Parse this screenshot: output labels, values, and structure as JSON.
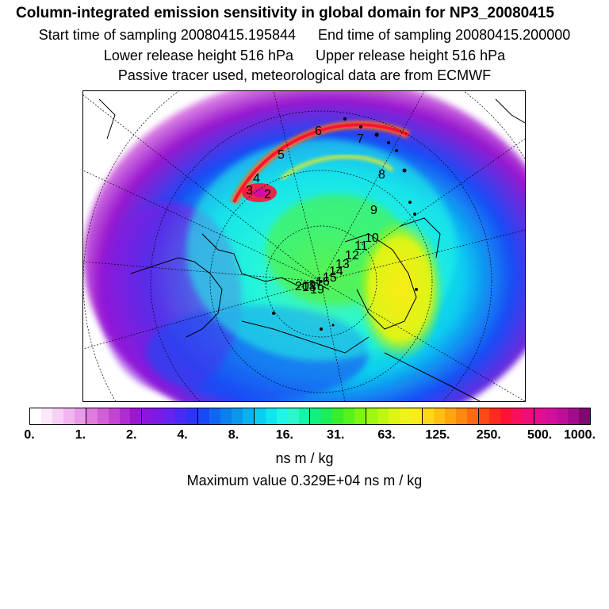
{
  "header": {
    "title": "Column-integrated emission sensitivity in global domain for NP3_20080415",
    "start_label": "Start time of sampling 20080415.195844",
    "end_label": "End time of sampling 20080415.200000",
    "lower_label": "Lower release height  516 hPa",
    "upper_label": "Upper release height  516 hPa",
    "note": "Passive tracer used, meteorological data are from ECMWF"
  },
  "map": {
    "projection": "polar stereographic",
    "track_labels": [
      "6",
      "7",
      "5",
      "8",
      "4",
      "3",
      "2",
      "9",
      "10",
      "11",
      "12",
      "13",
      "14",
      "15",
      "16",
      "17",
      "18",
      "19",
      "20"
    ]
  },
  "colorbar": {
    "tick_labels": [
      "0.",
      "1.",
      "2.",
      "4.",
      "8.",
      "16.",
      "31.",
      "63.",
      "125.",
      "250.",
      "500.",
      "1000."
    ],
    "colors": [
      "#ffffff",
      "#fbe8fb",
      "#f6d0f6",
      "#f0b6f0",
      "#e99ae9",
      "#df7adf",
      "#d25ed6",
      "#c244d3",
      "#b02bd0",
      "#9a18cf",
      "#8a16e0",
      "#7a1ae8",
      "#6622ef",
      "#4a2af4",
      "#2e34f6",
      "#1a4af5",
      "#0e66f2",
      "#0a80ef",
      "#0a98ee",
      "#0ab2ef",
      "#0acdf0",
      "#10e4ef",
      "#20f5e6",
      "#2af8cc",
      "#16f5a6",
      "#10f07e",
      "#1aee58",
      "#36ef2c",
      "#56f21c",
      "#7af514",
      "#9ef712",
      "#bef812",
      "#dcf514",
      "#eef31c",
      "#f8ec1a",
      "#fed816",
      "#ffc012",
      "#ffa40e",
      "#ff880e",
      "#ff6a10",
      "#ff4a16",
      "#ff2a1e",
      "#ff1234",
      "#f8105a",
      "#ee0e7a",
      "#e20e8e",
      "#d40e9c",
      "#c00e9a",
      "#a20c8c",
      "#80086e"
    ]
  },
  "units": "ns m / kg",
  "max_value_text": "Maximum value  0.329E+04 ns m / kg"
}
